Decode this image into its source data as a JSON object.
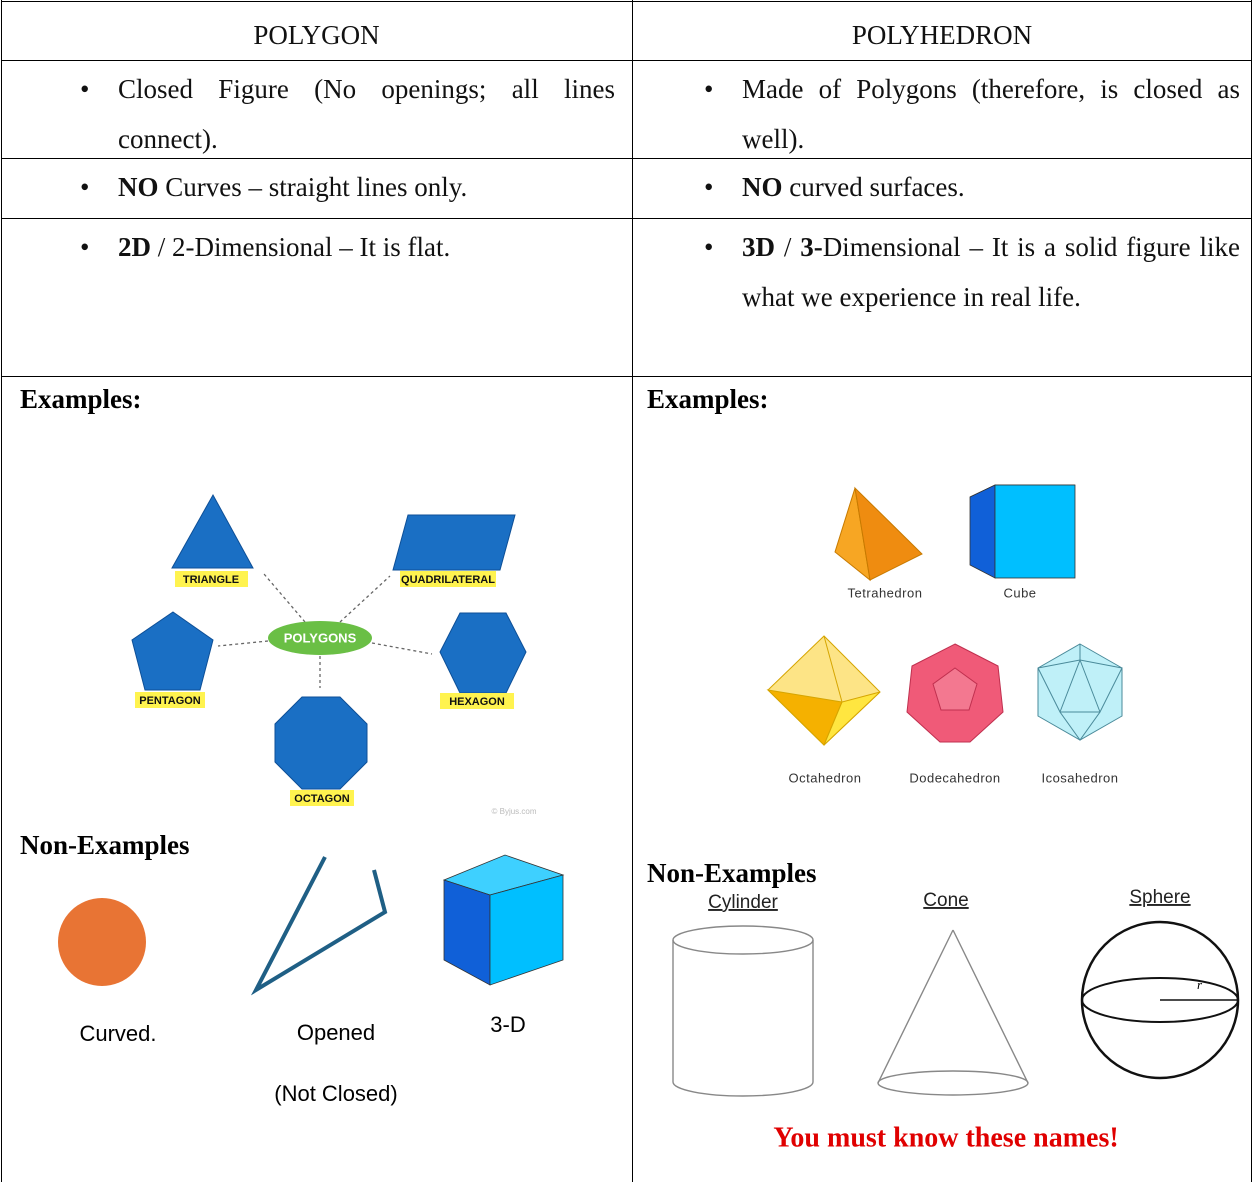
{
  "table": {
    "header": [
      "POLYGON",
      "POLYHEDRON"
    ],
    "rows": [
      [
        [
          {
            "text": "Closed Figure (No openings; all lines connect)."
          }
        ],
        [
          {
            "text": "Made of Polygons (therefore, is closed as well)."
          }
        ]
      ],
      [
        [
          {
            "text": "NO",
            "bold": true
          },
          {
            "text": " Curves – straight lines only."
          }
        ],
        [
          {
            "text": "NO",
            "bold": true
          },
          {
            "text": " curved surfaces."
          }
        ]
      ],
      [
        [
          {
            "text": "2D",
            "bold": true
          },
          {
            "text": " / 2-Dimensional – It is flat."
          }
        ],
        [
          {
            "text": "3D",
            "bold": true
          },
          {
            "text": " / "
          },
          {
            "text": "3-",
            "bold": true
          },
          {
            "text": "Dimensional – It is a solid figure like what we experience in real life."
          }
        ]
      ]
    ],
    "polygon": {
      "examples_title": "Examples:",
      "diagram": {
        "center": "POLYGONS",
        "shapes": [
          "TRIANGLE",
          "QUADRILATERAL",
          "PENTAGON",
          "HEXAGON",
          "OCTAGON"
        ],
        "credit": "© Byjus.com"
      },
      "non_examples_title": "Non-Examples",
      "non_examples": [
        "Curved.",
        "Opened",
        "(Not Closed)",
        "3-D"
      ]
    },
    "polyhedron": {
      "examples_title": "Examples:",
      "examples": [
        "Tetrahedron",
        "Cube",
        "Octahedron",
        "Dodecahedron",
        "Icosahedron"
      ],
      "non_examples_title": "Non-Examples",
      "non_examples": [
        "Cylinder",
        "Cone",
        "Sphere"
      ],
      "radius_label": "r",
      "note": "You must know these names!"
    }
  }
}
